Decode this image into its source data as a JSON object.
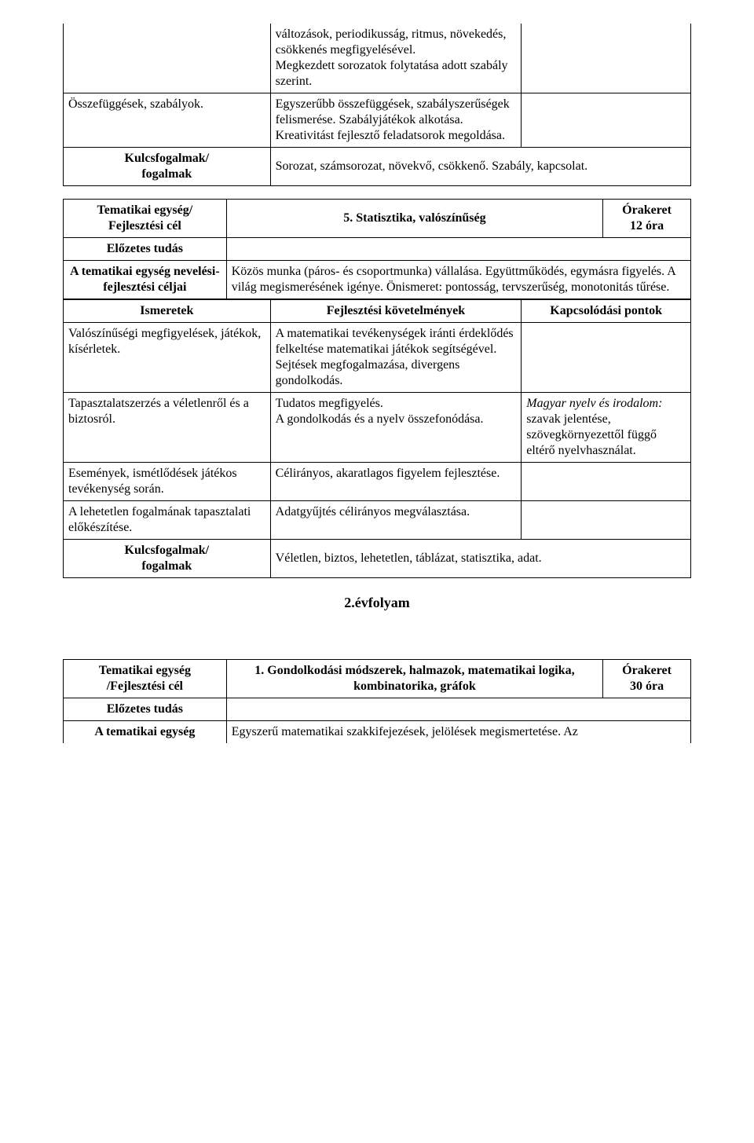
{
  "t1": {
    "r1c2": "változások, periodikusság, ritmus, növekedés, csökkenés megfigyelésével.\nMegkezdett sorozatok folytatása adott szabály szerint.",
    "r2c1": "Összefüggések, szabályok.",
    "r2c2": "Egyszerűbb összefüggések, szabályszerűségek felismerése. Szabályjátékok alkotása. Kreativitást fejlesztő feladatsorok megoldása.",
    "kf_label": "Kulcsfogalmak/\nfogalmak",
    "kf_value": "Sorozat, számsorozat, növekvő, csökkenő. Szabály, kapcsolat."
  },
  "t2": {
    "h1": "Tematikai egység/\nFejlesztési cél",
    "h2": "5. Statisztika, valószínűség",
    "h3a": "Órakeret",
    "h3b": "12 óra",
    "r2": "Előzetes tudás",
    "r3a": "A tematikai egység nevelési-fejlesztési céljai",
    "r3b": "Közös munka (páros- és csoportmunka) vállalása. Együttműködés, egymásra figyelés. A világ megismerésének igénye. Önismeret: pontosság, tervszerűség, monotonitás tűrése.",
    "colh1": "Ismeretek",
    "colh2": "Fejlesztési követelmények",
    "colh3": "Kapcsolódási pontok",
    "r5c1": "Valószínűségi megfigyelések, játékok, kísérletek.",
    "r5c2": "A matematikai tevékenységek iránti érdeklődés felkeltése matematikai játékok segítségével. Sejtések megfogalmazása, divergens gondolkodás.",
    "r6c1": "Tapasztalatszerzés a véletlenről és a biztosról.",
    "r6c2": "Tudatos megfigyelés.\nA gondolkodás és a nyelv összefonódása.",
    "r6c3a": "Magyar nyelv és irodalom:",
    "r6c3b": " szavak jelentése, szövegkörnyezettől függő eltérő nyelvhasználat.",
    "r7c1": "Események, ismétlődések játékos tevékenység során.",
    "r7c2": "Célirányos, akaratlagos figyelem fejlesztése.",
    "r8c1": "A lehetetlen fogalmának tapasztalati előkészítése.",
    "r8c2": "Adatgyűjtés célirányos megválasztása.",
    "kf_label": "Kulcsfogalmak/\nfogalmak",
    "kf_value": "Véletlen, biztos, lehetetlen, táblázat, statisztika, adat."
  },
  "grade": "2.évfolyam",
  "t3": {
    "h1": "Tematikai egység\n/Fejlesztési cél",
    "h2": "1. Gondolkodási módszerek, halmazok, matematikai logika, kombinatorika, gráfok",
    "h3a": "Órakeret",
    "h3b": "30 óra",
    "r2": "Előzetes tudás",
    "r3a": "A tematikai egység",
    "r3b": "Egyszerű matematikai szakkifejezések, jelölések megismertetése. Az"
  }
}
